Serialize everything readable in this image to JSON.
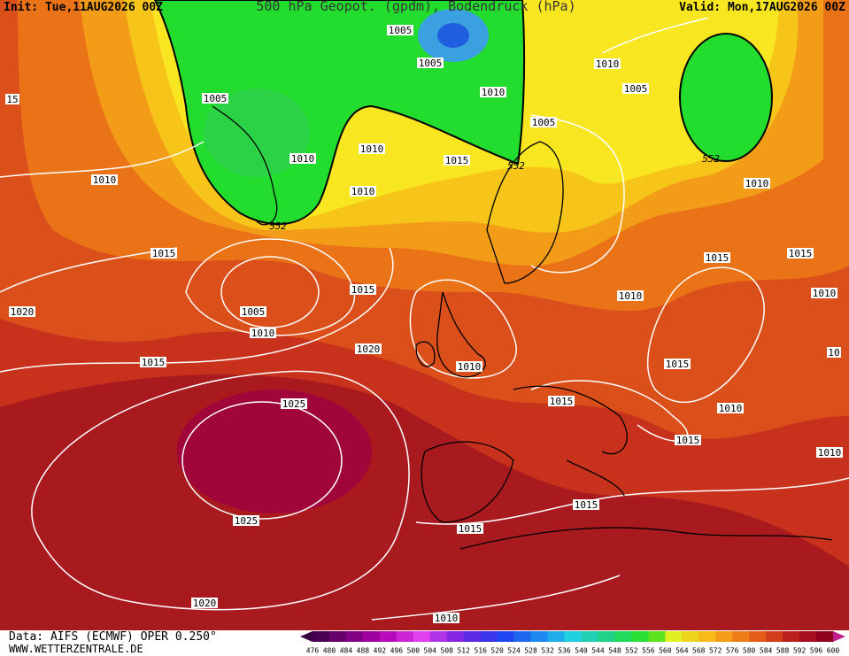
{
  "header": {
    "init": "Init: Tue,11AUG2026 00Z",
    "title": "500 hPa Geopot. (gpdm), Bodendruck (hPa)",
    "valid": "Valid: Mon,17AUG2026 00Z"
  },
  "map": {
    "isobar_labels": [
      "1005",
      "1005",
      "1010",
      "1010",
      "1005",
      "1005",
      "15",
      "1005",
      "1010",
      "1010",
      "1015",
      "1010",
      "1010",
      "1010",
      "1015",
      "1015",
      "1015",
      "1015",
      "1010",
      "1010",
      "1020",
      "1005",
      "1010",
      "1020",
      "1015",
      "1010",
      "1015",
      "1015",
      "1010",
      "1025",
      "1015",
      "1010",
      "1015",
      "1015",
      "1025",
      "1020",
      "1010",
      "10"
    ],
    "contour_labels": [
      "552",
      "552",
      "552"
    ]
  },
  "footer": {
    "source": "Data: AIFS (ECMWF) OPER 0.250°",
    "website": "WWW.WETTERZENTRALE.DE"
  },
  "colorbar": {
    "labels": [
      "476",
      "480",
      "484",
      "488",
      "492",
      "496",
      "500",
      "504",
      "508",
      "512",
      "516",
      "520",
      "524",
      "528",
      "532",
      "536",
      "540",
      "544",
      "548",
      "552",
      "556",
      "560",
      "564",
      "568",
      "572",
      "576",
      "580",
      "584",
      "588",
      "592",
      "596",
      "600"
    ]
  }
}
